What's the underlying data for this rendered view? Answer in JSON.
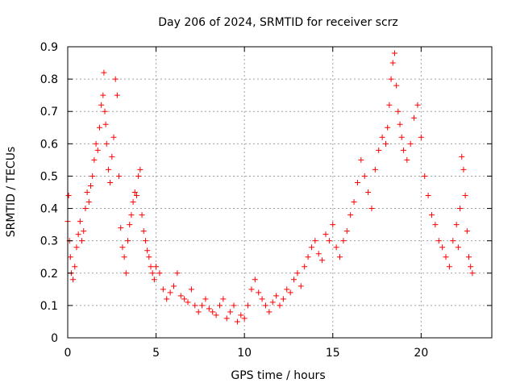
{
  "chart_data": {
    "type": "scatter",
    "title": "Day 206 of 2024, SRMTID for receiver scrz",
    "xlabel": "GPS time / hours",
    "ylabel": "SRMTID / TECUs",
    "xlim": [
      0,
      24
    ],
    "ylim": [
      0,
      0.9
    ],
    "xticks": [
      0,
      5,
      10,
      15,
      20
    ],
    "xtick_labels": [
      "0",
      "5",
      "10",
      "15",
      "20"
    ],
    "yticks": [
      0,
      0.1,
      0.2,
      0.3,
      0.4,
      0.5,
      0.6,
      0.7,
      0.8,
      0.9
    ],
    "ytick_labels": [
      "0",
      "0.1",
      "0.2",
      "0.3",
      "0.4",
      "0.5",
      "0.6",
      "0.7",
      "0.8",
      "0.9"
    ],
    "grid": true,
    "marker": "+",
    "color": "#ff0000",
    "series": [
      {
        "name": "SRMTID",
        "x": [
          0.0,
          0.05,
          0.1,
          0.15,
          0.2,
          0.3,
          0.4,
          0.5,
          0.6,
          0.7,
          0.8,
          0.9,
          1.0,
          1.1,
          1.2,
          1.3,
          1.4,
          1.5,
          1.6,
          1.7,
          1.8,
          1.9,
          2.0,
          2.05,
          2.1,
          2.15,
          2.2,
          2.3,
          2.4,
          2.5,
          2.6,
          2.7,
          2.8,
          2.9,
          3.0,
          3.1,
          3.2,
          3.3,
          3.4,
          3.5,
          3.6,
          3.7,
          3.8,
          3.9,
          4.0,
          4.1,
          4.2,
          4.3,
          4.4,
          4.5,
          4.6,
          4.7,
          4.8,
          4.9,
          5.0,
          5.2,
          5.4,
          5.6,
          5.8,
          6.0,
          6.2,
          6.4,
          6.6,
          6.8,
          7.0,
          7.2,
          7.4,
          7.6,
          7.8,
          8.0,
          8.2,
          8.4,
          8.6,
          8.8,
          9.0,
          9.2,
          9.4,
          9.6,
          9.8,
          10.0,
          10.2,
          10.4,
          10.6,
          10.8,
          11.0,
          11.2,
          11.4,
          11.6,
          11.8,
          12.0,
          12.2,
          12.4,
          12.6,
          12.8,
          13.0,
          13.2,
          13.4,
          13.6,
          13.8,
          14.0,
          14.2,
          14.4,
          14.6,
          14.8,
          15.0,
          15.2,
          15.4,
          15.6,
          15.8,
          16.0,
          16.2,
          16.4,
          16.6,
          16.8,
          17.0,
          17.2,
          17.4,
          17.6,
          17.8,
          18.0,
          18.1,
          18.2,
          18.3,
          18.4,
          18.5,
          18.6,
          18.7,
          18.8,
          18.9,
          19.0,
          19.2,
          19.4,
          19.6,
          19.8,
          20.0,
          20.2,
          20.4,
          20.6,
          20.8,
          21.0,
          21.2,
          21.4,
          21.6,
          21.8,
          22.0,
          22.1,
          22.2,
          22.3,
          22.4,
          22.5,
          22.6,
          22.7,
          22.8,
          22.9
        ],
        "y": [
          0.36,
          0.44,
          0.3,
          0.25,
          0.2,
          0.18,
          0.22,
          0.28,
          0.32,
          0.36,
          0.3,
          0.33,
          0.4,
          0.45,
          0.42,
          0.47,
          0.5,
          0.55,
          0.6,
          0.58,
          0.65,
          0.72,
          0.75,
          0.82,
          0.7,
          0.66,
          0.6,
          0.52,
          0.48,
          0.56,
          0.62,
          0.8,
          0.75,
          0.5,
          0.34,
          0.28,
          0.25,
          0.2,
          0.3,
          0.35,
          0.38,
          0.42,
          0.45,
          0.44,
          0.5,
          0.52,
          0.38,
          0.33,
          0.3,
          0.27,
          0.25,
          0.22,
          0.2,
          0.18,
          0.22,
          0.2,
          0.15,
          0.12,
          0.14,
          0.16,
          0.2,
          0.13,
          0.12,
          0.11,
          0.15,
          0.1,
          0.08,
          0.1,
          0.12,
          0.09,
          0.08,
          0.07,
          0.1,
          0.12,
          0.06,
          0.08,
          0.1,
          0.05,
          0.07,
          0.06,
          0.1,
          0.15,
          0.18,
          0.14,
          0.12,
          0.1,
          0.08,
          0.11,
          0.13,
          0.1,
          0.12,
          0.15,
          0.14,
          0.18,
          0.2,
          0.16,
          0.22,
          0.25,
          0.28,
          0.3,
          0.26,
          0.24,
          0.32,
          0.3,
          0.35,
          0.28,
          0.25,
          0.3,
          0.33,
          0.38,
          0.42,
          0.48,
          0.55,
          0.5,
          0.45,
          0.4,
          0.52,
          0.58,
          0.62,
          0.6,
          0.65,
          0.72,
          0.8,
          0.85,
          0.88,
          0.78,
          0.7,
          0.66,
          0.62,
          0.58,
          0.55,
          0.6,
          0.68,
          0.72,
          0.62,
          0.5,
          0.44,
          0.38,
          0.35,
          0.3,
          0.28,
          0.25,
          0.22,
          0.3,
          0.35,
          0.28,
          0.4,
          0.56,
          0.52,
          0.44,
          0.33,
          0.25,
          0.22,
          0.2
        ]
      }
    ]
  }
}
